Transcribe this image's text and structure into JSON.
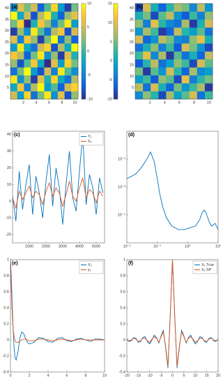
{
  "chart_data": [
    {
      "type": "heatmap",
      "title": "(a)",
      "xlim": [
        0,
        10.5
      ],
      "ylim": [
        0,
        42
      ],
      "xticks": [
        2,
        4,
        6,
        8,
        10
      ],
      "yticks": [
        5,
        10,
        15,
        20,
        25,
        30,
        35,
        40
      ],
      "values": [
        [
          5,
          -3,
          8,
          -6,
          2,
          9,
          -4,
          6,
          -8,
          3
        ],
        [
          -2,
          7,
          -5,
          4,
          10,
          -3,
          1,
          -7,
          5,
          8
        ],
        [
          9,
          -4,
          3,
          -9,
          6,
          -1,
          8,
          -2,
          -6,
          4
        ],
        [
          -6,
          2,
          10,
          -3,
          -8,
          5,
          -5,
          9,
          1,
          -4
        ],
        [
          3,
          -8,
          1,
          7,
          -2,
          -10,
          6,
          -3,
          8,
          2
        ],
        [
          7,
          4,
          -7,
          2,
          9,
          -4,
          3,
          -9,
          6,
          -1
        ],
        [
          -3,
          9,
          -2,
          -6,
          5,
          8,
          -8,
          4,
          -2,
          10
        ],
        [
          6,
          -5,
          7,
          3,
          -9,
          2,
          10,
          -6,
          3,
          -7
        ],
        [
          -9,
          3,
          -4,
          9,
          1,
          -6,
          4,
          7,
          -8,
          5
        ],
        [
          2,
          8,
          -10,
          -1,
          7,
          3,
          -5,
          2,
          9,
          -3
        ],
        [
          10,
          -2,
          5,
          -8,
          4,
          9,
          -1,
          -7,
          3,
          6
        ],
        [
          -4,
          6,
          2,
          5,
          -7,
          1,
          8,
          -3,
          -9,
          2
        ]
      ],
      "colorbar": {
        "side": "right",
        "clim": [
          -10,
          10
        ],
        "ticks": [
          -10,
          -5,
          0,
          5,
          10
        ]
      }
    },
    {
      "type": "heatmap",
      "title": "(b)",
      "xlim": [
        0,
        10.5
      ],
      "ylim": [
        0,
        42
      ],
      "xticks": [
        2,
        4,
        6,
        8,
        10
      ],
      "yticks": [
        5,
        10,
        15,
        20,
        25,
        30,
        35,
        40
      ],
      "values": [
        [
          -3,
          6,
          2,
          -8,
          7,
          -1,
          4,
          9,
          -5,
          3
        ],
        [
          8,
          -5,
          9,
          1,
          -6,
          5,
          -2,
          3,
          7,
          -9
        ],
        [
          -1,
          3,
          -7,
          6,
          4,
          -8,
          10,
          -4,
          2,
          5
        ],
        [
          5,
          -9,
          4,
          -2,
          9,
          2,
          -6,
          7,
          -3,
          -1
        ],
        [
          -7,
          2,
          8,
          -5,
          -1,
          6,
          3,
          -8,
          9,
          4
        ],
        [
          3,
          10,
          -3,
          7,
          -9,
          4,
          -5,
          1,
          -6,
          8
        ],
        [
          -5,
          1,
          6,
          -4,
          3,
          -7,
          9,
          5,
          -2,
          -8
        ],
        [
          9,
          -6,
          -2,
          8,
          5,
          -3,
          -4,
          6,
          10,
          1
        ],
        [
          -2,
          7,
          3,
          -9,
          -6,
          8,
          2,
          -1,
          4,
          -5
        ],
        [
          6,
          -4,
          10,
          2,
          -3,
          -5,
          7,
          -9,
          1,
          9
        ],
        [
          1,
          5,
          -8,
          4,
          8,
          -2,
          -7,
          3,
          -4,
          6
        ],
        [
          -8,
          9,
          1,
          -6,
          2,
          7,
          5,
          -3,
          8,
          -2
        ]
      ],
      "colorbar": {
        "side": "left",
        "clim": [
          -10,
          15
        ],
        "ticks": [
          -10,
          -5,
          0,
          5,
          10,
          15
        ]
      }
    },
    {
      "type": "line",
      "title": "(c)",
      "xlim": [
        0,
        5500
      ],
      "ylim": [
        -25,
        42
      ],
      "xticks": [
        1000,
        2000,
        3000,
        4000,
        5000
      ],
      "yticks": [
        -20,
        -10,
        0,
        10,
        20,
        30,
        40
      ],
      "legend": "upper right",
      "x": [
        0,
        200,
        400,
        600,
        800,
        1000,
        1200,
        1400,
        1600,
        1800,
        2000,
        2200,
        2400,
        2600,
        2800,
        3000,
        3200,
        3400,
        3600,
        3800,
        4000,
        4200,
        4400,
        4600,
        4800,
        5000,
        5200,
        5400
      ],
      "series": [
        {
          "name": "Y₁",
          "color": "#0072bd",
          "values": [
            3,
            -12,
            18,
            -5,
            10,
            22,
            -8,
            15,
            5,
            -10,
            12,
            28,
            -3,
            20,
            8,
            -14,
            10,
            30,
            2,
            -6,
            18,
            40,
            -2,
            16,
            8,
            -8,
            14,
            5
          ]
        },
        {
          "name": "X₂",
          "color": "#d95319",
          "values": [
            2,
            -4,
            6,
            1,
            5,
            9,
            2,
            6,
            4,
            -2,
            6,
            11,
            3,
            8,
            5,
            -3,
            4,
            12,
            3,
            0,
            8,
            14,
            2,
            7,
            5,
            -1,
            6,
            3
          ]
        }
      ]
    },
    {
      "type": "line",
      "title": "(d)",
      "xscale": "log",
      "yscale": "log",
      "xlim": [
        0.01,
        10
      ],
      "ylim": [
        1e-05,
        0.1
      ],
      "xticks": [
        {
          "value": 0.01,
          "label": "10⁻²"
        },
        {
          "value": 0.1,
          "label": "10⁻¹"
        },
        {
          "value": 1,
          "label": "10⁰"
        },
        {
          "value": 10,
          "label": "10¹"
        }
      ],
      "yticks": [
        {
          "value": 0.0001,
          "label": "10⁻⁴"
        },
        {
          "value": 0.001,
          "label": "10⁻³"
        },
        {
          "value": 0.01,
          "label": "10⁻²"
        }
      ],
      "x": [
        0.01,
        0.015,
        0.02,
        0.03,
        0.04,
        0.05,
        0.06,
        0.08,
        0.1,
        0.12,
        0.15,
        0.2,
        0.3,
        0.5,
        0.8,
        1.2,
        1.8,
        2.5,
        3,
        3.5,
        4,
        5,
        6,
        8,
        10
      ],
      "series": [
        {
          "color": "#0072bd",
          "values": [
            0.002,
            0.0025,
            0.003,
            0.005,
            0.008,
            0.012,
            0.018,
            0.008,
            0.002,
            0.0006,
            0.0002,
            8e-05,
            4e-05,
            3e-05,
            3e-05,
            3.5e-05,
            4e-05,
            7e-05,
            0.00012,
            0.00015,
            0.00012,
            6e-05,
            4e-05,
            5e-05,
            3e-05
          ]
        }
      ]
    },
    {
      "type": "line",
      "title": "(e)",
      "xlim": [
        0,
        10
      ],
      "ylim": [
        -0.4,
        1
      ],
      "xticks": [
        0,
        2,
        4,
        6,
        8,
        10
      ],
      "yticks": [
        -0.4,
        -0.2,
        0,
        0.2,
        0.4,
        0.6,
        0.8,
        1
      ],
      "legend": "upper right",
      "x": [
        0,
        0.1,
        0.2,
        0.3,
        0.4,
        0.5,
        0.6,
        0.8,
        1,
        1.2,
        1.4,
        1.6,
        1.8,
        2,
        2.5,
        3,
        3.5,
        4,
        4.5,
        5,
        5.5,
        6,
        6.5,
        7,
        7.5,
        8,
        8.5,
        9,
        9.5,
        10
      ],
      "series": [
        {
          "name": "X₂",
          "color": "#0072bd",
          "values": [
            1,
            0.75,
            0.4,
            0.1,
            -0.12,
            -0.22,
            -0.25,
            -0.15,
            0.02,
            0.1,
            0.08,
            0.02,
            -0.03,
            -0.05,
            -0.03,
            0.03,
            0.02,
            -0.02,
            -0.03,
            0.02,
            0.03,
            -0.01,
            -0.02,
            0.01,
            0.02,
            0,
            -0.02,
            0.01,
            0.01,
            0
          ]
        },
        {
          "name": "y₁",
          "color": "#d95319",
          "values": [
            1,
            0.6,
            0.3,
            0.12,
            0.03,
            -0.01,
            -0.03,
            -0.03,
            -0.02,
            0,
            0.01,
            0.01,
            0,
            -0.01,
            -0.01,
            0.01,
            0.01,
            0,
            -0.01,
            0,
            0.01,
            0,
            -0.01,
            0,
            0.01,
            0,
            0,
            0,
            0,
            0
          ]
        }
      ]
    },
    {
      "type": "line",
      "title": "(f)",
      "xlim": [
        -20,
        20
      ],
      "ylim": [
        -0.4,
        1
      ],
      "xticks": [
        -20,
        -15,
        -10,
        -5,
        0,
        5,
        10,
        15,
        20
      ],
      "yticks": [
        -0.4,
        -0.2,
        0,
        0.2,
        0.4,
        0.6,
        0.8,
        1
      ],
      "legend": "upper right",
      "x": [
        -20,
        -19,
        -18,
        -17,
        -16,
        -15,
        -14,
        -13,
        -12,
        -11,
        -10,
        -9,
        -8,
        -7,
        -6,
        -5,
        -4,
        -3,
        -2,
        -1,
        0,
        1,
        2,
        3,
        4,
        5,
        6,
        7,
        8,
        9,
        10,
        11,
        12,
        13,
        14,
        15,
        16,
        17,
        18,
        19,
        20
      ],
      "series": [
        {
          "name": "X₁ True",
          "color": "#0072bd",
          "values": [
            0.01,
            -0.02,
            -0.01,
            0.03,
            0.02,
            -0.03,
            -0.02,
            0.03,
            0.04,
            -0.02,
            -0.05,
            0,
            0.06,
            0.03,
            -0.04,
            0.05,
            0.12,
            -0.1,
            -0.35,
            0.3,
            1,
            0.3,
            -0.35,
            -0.1,
            0.12,
            0.05,
            -0.04,
            0.03,
            0.06,
            0,
            -0.05,
            -0.02,
            0.04,
            0.03,
            -0.02,
            -0.03,
            0.02,
            0.03,
            -0.01,
            -0.02,
            0.01
          ]
        },
        {
          "name": "X₁ SP",
          "color": "#d95319",
          "values": [
            0,
            -0.01,
            0,
            0.02,
            0.01,
            -0.02,
            -0.01,
            0.02,
            0.02,
            -0.01,
            -0.03,
            0.01,
            0.04,
            0.02,
            -0.03,
            0.04,
            0.1,
            -0.08,
            -0.33,
            0.28,
            1,
            0.28,
            -0.33,
            -0.08,
            0.1,
            0.04,
            -0.03,
            0.02,
            0.04,
            0.01,
            -0.03,
            -0.01,
            0.02,
            0.02,
            -0.01,
            -0.02,
            0.01,
            0.02,
            0,
            -0.01,
            0
          ]
        }
      ]
    }
  ]
}
